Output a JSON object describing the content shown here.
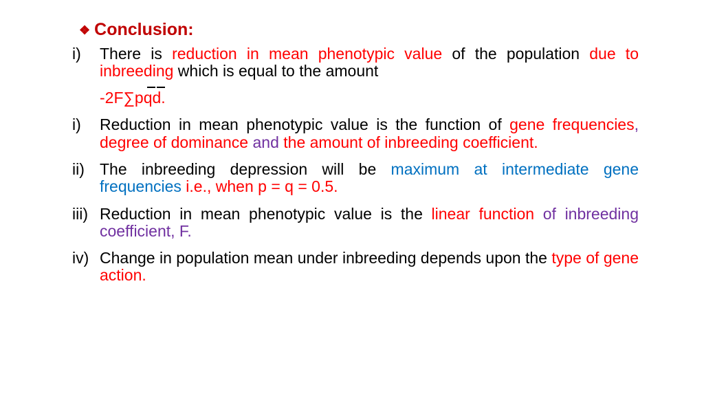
{
  "heading": {
    "icon": "❖",
    "text": "Conclusion:"
  },
  "items": [
    {
      "marker": "i)",
      "segments": [
        {
          "t": "There is ",
          "c": "black"
        },
        {
          "t": "reduction in mean phenotypic value",
          "c": "red"
        },
        {
          "t": " of the population ",
          "c": "black"
        },
        {
          "t": "due to inbreeding",
          "c": "red"
        },
        {
          "t": " which is equal to the amount",
          "c": "black"
        }
      ]
    }
  ],
  "formula": "-2F∑pqd.",
  "items2": [
    {
      "marker": "i)",
      "segments": [
        {
          "t": "Reduction in mean phenotypic value is the function of ",
          "c": "black"
        },
        {
          "t": "gene frequencies",
          "c": "red"
        },
        {
          "t": ", ",
          "c": "purple"
        },
        {
          "t": "degree of dominance",
          "c": "red"
        },
        {
          "t": " and ",
          "c": "purple"
        },
        {
          "t": "the amount of inbreeding coefficient.",
          "c": "red"
        }
      ]
    },
    {
      "marker": "ii)",
      "segments": [
        {
          "t": " The inbreeding depression will be ",
          "c": "black"
        },
        {
          "t": "maximum at intermediate gene frequencies",
          "c": "blue"
        },
        {
          "t": " i.e., when ",
          "c": "red"
        },
        {
          "t": "p = q = 0.5.",
          "c": "red"
        }
      ]
    },
    {
      "marker": "iii)",
      "segments": [
        {
          "t": " Reduction in mean phenotypic value is the ",
          "c": "black"
        },
        {
          "t": "linear function ",
          "c": "red"
        },
        {
          "t": "of inbreeding coefficient, F.",
          "c": "purple"
        }
      ]
    },
    {
      "marker": "iv)",
      "segments": [
        {
          "t": "Change in population mean under inbreeding depends upon the ",
          "c": "black"
        },
        {
          "t": "type of gene action.",
          "c": "red"
        }
      ]
    }
  ],
  "colors": {
    "black": "#000000",
    "red": "#ff0000",
    "blue": "#0070c0",
    "purple": "#7030a0",
    "heading_red": "#c00000",
    "background": "#ffffff"
  },
  "typography": {
    "font_family": "Comic Sans MS",
    "body_fontsize": 23,
    "heading_fontsize": 25
  }
}
